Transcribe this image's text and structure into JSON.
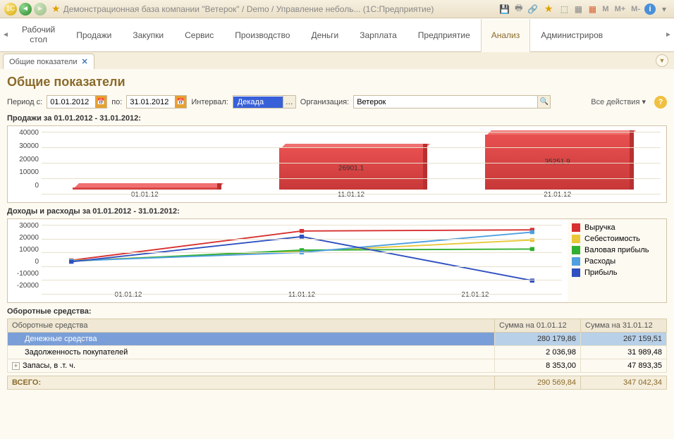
{
  "titlebar": {
    "title": "Демонстрационная база компании \"Ветерок\" / Demo / Управление неболь...   (1С:Предприятие)",
    "m": "M",
    "mp": "M+",
    "mm": "M-"
  },
  "main_tabs": {
    "items": [
      "Рабочий\nстол",
      "Продажи",
      "Закупки",
      "Сервис",
      "Производство",
      "Деньги",
      "Зарплата",
      "Предприятие",
      "Анализ",
      "Администриров"
    ],
    "active_index": 8
  },
  "sub_tab": {
    "label": "Общие показатели"
  },
  "page": {
    "title": "Общие показатели"
  },
  "filters": {
    "period_from_label": "Период с:",
    "period_from": "01.01.2012",
    "period_to_label": "по:",
    "period_to": "31.01.2012",
    "interval_label": "Интервал:",
    "interval_value": "Декада",
    "org_label": "Организация:",
    "org_value": "Ветерок",
    "actions": "Все действия",
    "help": "?"
  },
  "sales_chart": {
    "label": "Продажи за 01.01.2012 - 31.01.2012:",
    "type": "bar",
    "y_ticks": [
      "40000",
      "30000",
      "20000",
      "10000",
      "0"
    ],
    "ylim": [
      0,
      40000
    ],
    "categories": [
      "01.01.12",
      "11.01.12",
      "21.01.12"
    ],
    "values": [
      1200,
      26901.1,
      35251.9
    ],
    "value_labels": [
      "",
      "26901.1",
      "35251.9"
    ],
    "bar_color": "#d84040",
    "bar_top_color": "#f07070",
    "bar_side_color": "#b83030",
    "grid_color": "#e8e0cc",
    "background_color": "#ffffff"
  },
  "income_chart": {
    "label": "Доходы и расходы за 01.01.2012 - 31.01.2012:",
    "type": "line",
    "y_ticks": [
      "30000",
      "20000",
      "10000",
      "0",
      "-10000",
      "-20000"
    ],
    "ylim": [
      -25000,
      35000
    ],
    "x_labels": [
      "01.01.12",
      "11.01.12",
      "21.01.12"
    ],
    "series": [
      {
        "name": "Выручка",
        "color": "#d83030",
        "points": [
          [
            0,
            1000
          ],
          [
            1,
            27000
          ],
          [
            2,
            28000
          ]
        ],
        "marker": "square"
      },
      {
        "name": "Себестоимость",
        "color": "#e8c838",
        "points": [
          [
            0,
            800
          ],
          [
            1,
            9000
          ],
          [
            2,
            19000
          ]
        ],
        "marker": "square"
      },
      {
        "name": "Валовая прибыль",
        "color": "#30b030",
        "points": [
          [
            0,
            200
          ],
          [
            1,
            10000
          ],
          [
            2,
            11000
          ]
        ],
        "marker": "square"
      },
      {
        "name": "Расходы",
        "color": "#50a0e0",
        "points": [
          [
            0,
            500
          ],
          [
            1,
            8000
          ],
          [
            2,
            26000
          ]
        ],
        "marker": "square"
      },
      {
        "name": "Прибыль",
        "color": "#3050c0",
        "points": [
          [
            0,
            -300
          ],
          [
            1,
            22000
          ],
          [
            2,
            -17000
          ]
        ],
        "marker": "square"
      }
    ],
    "line_width": 2,
    "marker_size": 5,
    "grid_color": "#e8e0cc",
    "background_color": "#ffffff"
  },
  "assets": {
    "label": "Оборотные средства:",
    "columns": [
      "Оборотные средства",
      "Сумма на 01.01.12",
      "Сумма на 31.01.12"
    ],
    "rows": [
      {
        "indent": 1,
        "label": "Денежные средства",
        "v1": "280 179,86",
        "v2": "267 159,51",
        "selected": true
      },
      {
        "indent": 1,
        "label": "Задолженность покупателей",
        "v1": "2 036,98",
        "v2": "31 989,48"
      },
      {
        "indent": 0,
        "expandable": true,
        "label": "Запасы, в .т. ч.",
        "v1": "8 353,00",
        "v2": "47 893,35"
      }
    ],
    "total_label": "ВСЕГО:",
    "total_v1": "290 569,84",
    "total_v2": "347 042,34",
    "col_widths": {
      "c1": "auto",
      "c2": "122px",
      "c3": "122px"
    }
  }
}
